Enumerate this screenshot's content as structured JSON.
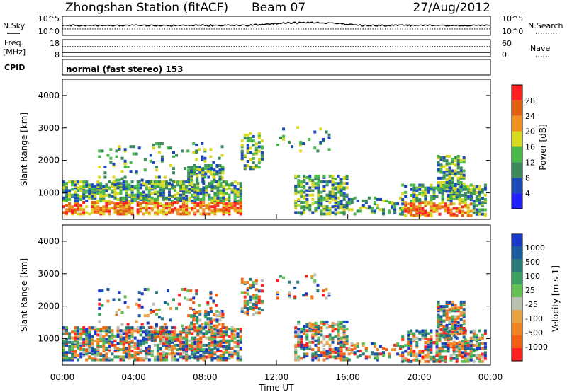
{
  "header": {
    "station": "Zhongshan Station (fitACF)",
    "beam": "Beam 07",
    "date": "27/Aug/2012",
    "mode": "normal (fast stereo) 153"
  },
  "panel_labels": {
    "nsky": "N.Sky",
    "nsearch": "N.Search",
    "freq_line1": "Freq.",
    "freq_line2": "[MHz]",
    "nave": "Nave",
    "cpid": "CPID"
  },
  "small_ticks": {
    "nsky_top": "10^5",
    "nsky_bottom": "10^0",
    "nsearch_top": "10^5",
    "nsearch_bottom": "10^0",
    "freq_top": "18",
    "freq_bottom": "8",
    "nave_top": "60",
    "nave_bottom": "0"
  },
  "chart_data": [
    {
      "type": "heatmap",
      "name": "power",
      "ylabel": "Slant Range [km]",
      "colorbar_label": "Power [dB]",
      "ylim": [
        180,
        4500
      ],
      "y_ticks": [
        1000,
        2000,
        3000,
        4000
      ],
      "colorbar_ticks": [
        "4",
        "8",
        "12",
        "16",
        "20",
        "24",
        "28"
      ],
      "colors": [
        "#2020ff",
        "#1a4ab8",
        "#3a8a5a",
        "#48b848",
        "#d8d820",
        "#f09020",
        "#e06010",
        "#ff2020"
      ]
    },
    {
      "type": "heatmap",
      "name": "velocity",
      "ylabel": "Slant Range [km]",
      "colorbar_label": "Velocity [m s-1]",
      "ylim": [
        180,
        4500
      ],
      "y_ticks": [
        1000,
        2000,
        3000,
        4000
      ],
      "colorbar_ticks": [
        "1000",
        "500",
        "100",
        "25",
        "-25",
        "-100",
        "-500",
        "-1000"
      ],
      "colors": [
        "#1838c8",
        "#1a5aa0",
        "#2a7a7a",
        "#3aa060",
        "#60c050",
        "#b8c0b0",
        "#e8a040",
        "#f08020",
        "#f06010",
        "#ff2020"
      ],
      "x_ticks": [
        "00:00",
        "04:00",
        "08:00",
        "12:00",
        "16:00",
        "20:00",
        "00:00"
      ],
      "xlabel": "Time UT"
    }
  ],
  "colors": {
    "axis": "#000000",
    "background": "#ffffff"
  }
}
